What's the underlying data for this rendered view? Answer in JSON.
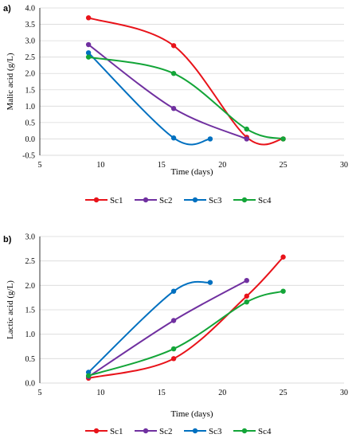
{
  "chart_data": [
    {
      "type": "line",
      "panel_label": "a)",
      "xlabel": "Time (days)",
      "ylabel": "Malic acid (g/L)",
      "xlim": [
        5,
        30
      ],
      "ylim": [
        -0.5,
        4.0
      ],
      "xticks": [
        5,
        10,
        15,
        20,
        25,
        30
      ],
      "yticks": [
        -0.5,
        0.0,
        0.5,
        1.0,
        1.5,
        2.0,
        2.5,
        3.0,
        3.5,
        4.0
      ],
      "grid": "horizontal",
      "legend": "bottom",
      "series": [
        {
          "name": "Sc1",
          "color": "#e8131a",
          "x": [
            9,
            16,
            22,
            25
          ],
          "y": [
            3.7,
            2.85,
            0.05,
            0.0
          ]
        },
        {
          "name": "Sc2",
          "color": "#7030a0",
          "x": [
            9,
            16,
            22
          ],
          "y": [
            2.88,
            0.93,
            0.0
          ]
        },
        {
          "name": "Sc3",
          "color": "#0070c0",
          "x": [
            9,
            16,
            19
          ],
          "y": [
            2.63,
            0.03,
            0.0
          ]
        },
        {
          "name": "Sc4",
          "color": "#13a538",
          "x": [
            9,
            16,
            22,
            25
          ],
          "y": [
            2.5,
            2.0,
            0.3,
            0.0
          ]
        }
      ]
    },
    {
      "type": "line",
      "panel_label": "b)",
      "xlabel": "Time (days)",
      "ylabel": "Lactic acid (g/L)",
      "xlim": [
        5,
        30
      ],
      "ylim": [
        0.0,
        3.0
      ],
      "xticks": [
        5,
        10,
        15,
        20,
        25,
        30
      ],
      "yticks": [
        0.0,
        0.5,
        1.0,
        1.5,
        2.0,
        2.5,
        3.0
      ],
      "grid": "horizontal",
      "legend": "bottom",
      "series": [
        {
          "name": "Sc1",
          "color": "#e8131a",
          "x": [
            9,
            16,
            22,
            25
          ],
          "y": [
            0.1,
            0.5,
            1.78,
            2.58
          ]
        },
        {
          "name": "Sc2",
          "color": "#7030a0",
          "x": [
            9,
            16,
            22
          ],
          "y": [
            0.13,
            1.28,
            2.1
          ]
        },
        {
          "name": "Sc3",
          "color": "#0070c0",
          "x": [
            9,
            16,
            19
          ],
          "y": [
            0.22,
            1.88,
            2.06
          ]
        },
        {
          "name": "Sc4",
          "color": "#13a538",
          "x": [
            9,
            16,
            22,
            25
          ],
          "y": [
            0.15,
            0.7,
            1.66,
            1.88
          ]
        }
      ]
    }
  ]
}
